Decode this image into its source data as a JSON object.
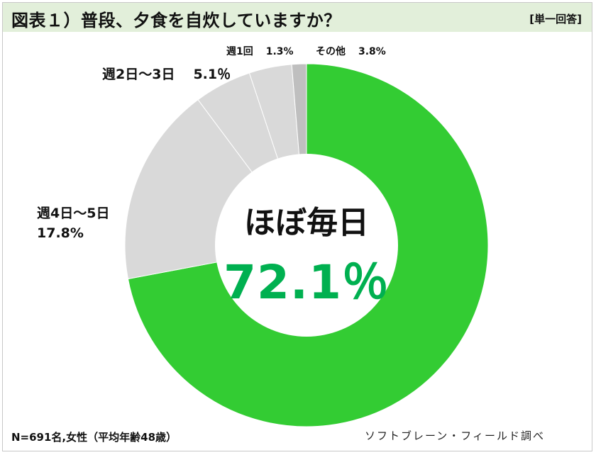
{
  "header": {
    "title": "図表１）普段、夕食を自炊していますか？",
    "answer_type": "[単一回答]"
  },
  "center": {
    "category": "ほぼ毎日",
    "value": "72.1％"
  },
  "labels": {
    "weekly_4_5": {
      "name": "週4日～5日",
      "value": "17.8%"
    },
    "weekly_2_3": {
      "name": "週2日～3日",
      "value": "5.1％"
    },
    "weekly_1": {
      "name": "週1回",
      "value": "1.3%"
    },
    "other": {
      "name": "その他",
      "value": "3.8%"
    }
  },
  "footer": {
    "sample": "N=691名,女性（平均年齢48歳）",
    "source": "ソフトブレーン・フィールド調べ"
  },
  "colors": {
    "header_bg": "#e2efda",
    "daily": "#33cc33",
    "light_gray": "#d9d9d9",
    "dark_gray": "#bfbfbf",
    "center_value": "#00b050"
  },
  "chart_data": {
    "type": "pie",
    "subtype": "donut",
    "title": "図表１）普段、夕食を自炊していますか？",
    "subtitle": "[単一回答]",
    "categories": [
      "ほぼ毎日",
      "週4日～5日",
      "週2日～3日",
      "その他",
      "週1回"
    ],
    "values": [
      72.1,
      17.8,
      5.1,
      3.8,
      1.3
    ],
    "unit": "%",
    "colors": [
      "#33cc33",
      "#d9d9d9",
      "#d9d9d9",
      "#d9d9d9",
      "#bfbfbf"
    ],
    "start_angle": "12 o'clock",
    "direction": "clockwise",
    "note": "N=691名,女性（平均年齢48歳）",
    "source": "ソフトブレーン・フィールド調べ"
  }
}
